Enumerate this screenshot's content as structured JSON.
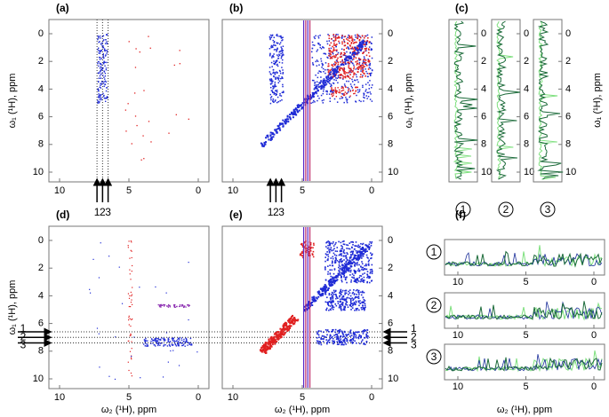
{
  "figure": {
    "a": {
      "label": "(a)",
      "xticks": [
        10,
        5,
        0
      ],
      "yticks": [
        0,
        2,
        4,
        6,
        8,
        10
      ],
      "ylabel": "ω₁ (¹H), ppm",
      "markers": [
        "1",
        "2",
        "3"
      ]
    },
    "b": {
      "label": "(b)",
      "xticks": [
        10,
        5,
        0
      ],
      "yticks": [
        0,
        2,
        4,
        6,
        8,
        10
      ],
      "ylabel": "ω₁ (¹H), ppm",
      "markers": [
        "1",
        "2",
        "3"
      ]
    },
    "c": {
      "label": "(c)",
      "yticks": [
        0,
        2,
        4,
        6,
        8,
        10
      ],
      "ylabel": "ω₁ (¹H), ppm",
      "traces": [
        "1",
        "2",
        "3"
      ]
    },
    "d": {
      "label": "(d)",
      "xticks": [
        10,
        5,
        0
      ],
      "yticks": [
        0,
        2,
        4,
        6,
        8,
        10
      ],
      "xlabel": "ω₂ (¹H), ppm",
      "ylabel": "ω₁ (¹H), ppm",
      "markers": [
        "1",
        "2",
        "3"
      ]
    },
    "e": {
      "label": "(e)",
      "xticks": [
        10,
        5,
        0
      ],
      "yticks": [
        0,
        2,
        4,
        6,
        8,
        10
      ],
      "xlabel": "ω₂ (¹H), ppm",
      "markers": [
        "1",
        "2",
        "3"
      ]
    },
    "f": {
      "label": "(f)",
      "xticks": [
        10,
        5,
        0
      ],
      "xlabel": "ω₂ (¹H), ppm",
      "traces": [
        "1",
        "2",
        "3"
      ]
    }
  }
}
